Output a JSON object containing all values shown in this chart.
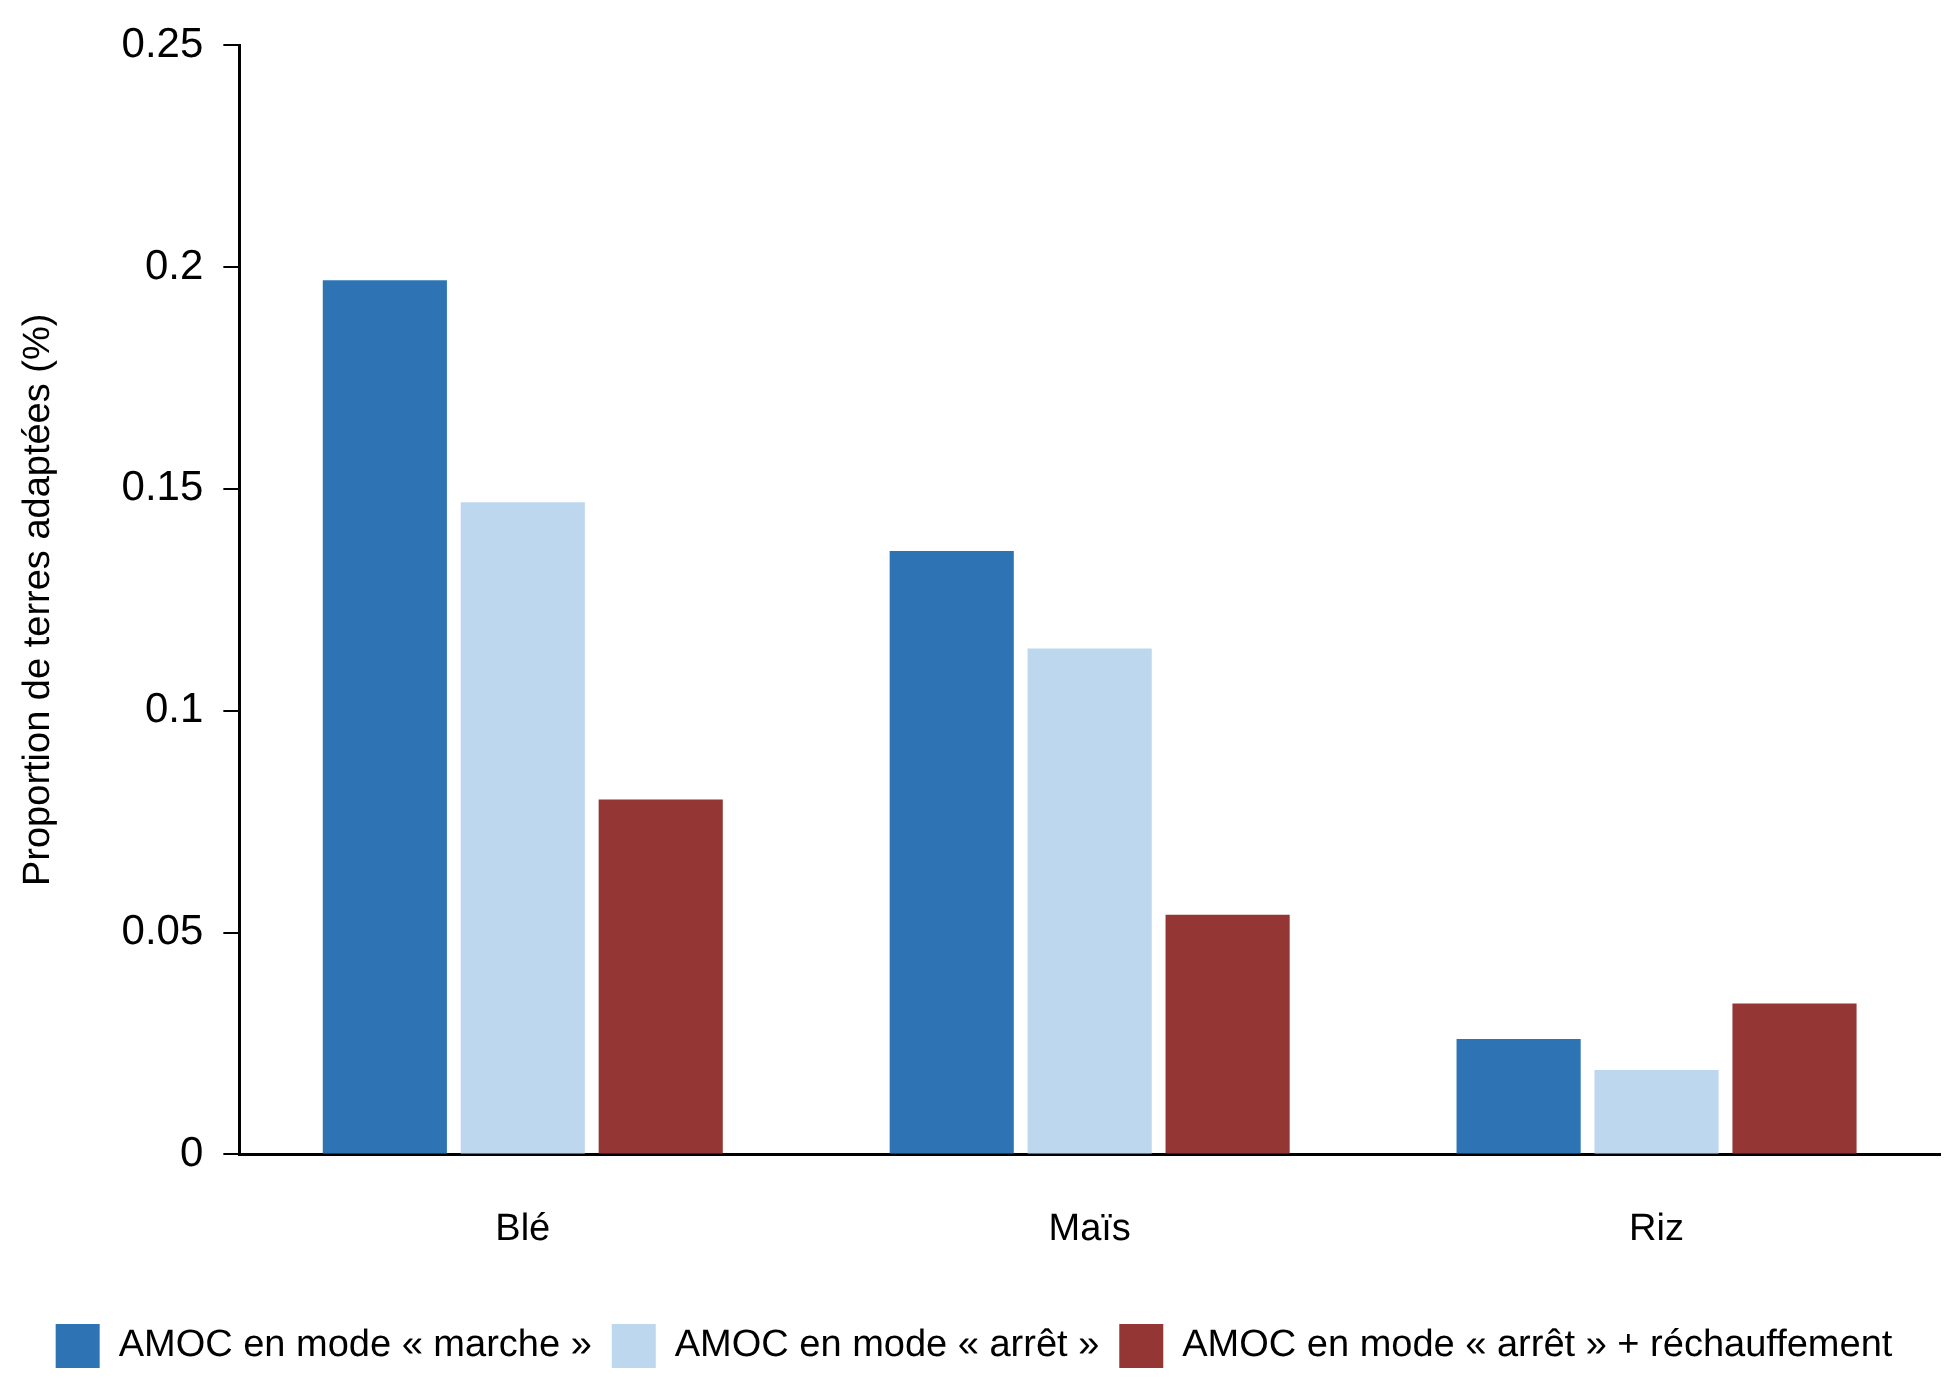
{
  "chart_data": {
    "type": "bar",
    "ylabel": "Proportion de terres adaptées (%)",
    "categories": [
      "Blé",
      "Maïs",
      "Riz"
    ],
    "series": [
      {
        "name": "AMOC en mode « marche »",
        "color": "#2e74b5",
        "values": [
          0.197,
          0.136,
          0.026
        ]
      },
      {
        "name": "AMOC en mode « arrêt »",
        "color": "#bdd7ee",
        "values": [
          0.147,
          0.114,
          0.019
        ]
      },
      {
        "name": "AMOC en mode « arrêt » + réchauffement",
        "color": "#943634",
        "values": [
          0.08,
          0.054,
          0.034
        ]
      }
    ],
    "ylim": [
      0,
      0.25
    ],
    "yticks": [
      0,
      0.05,
      0.1,
      0.15,
      0.2,
      0.25
    ],
    "grid": false,
    "legend": "bottom"
  }
}
